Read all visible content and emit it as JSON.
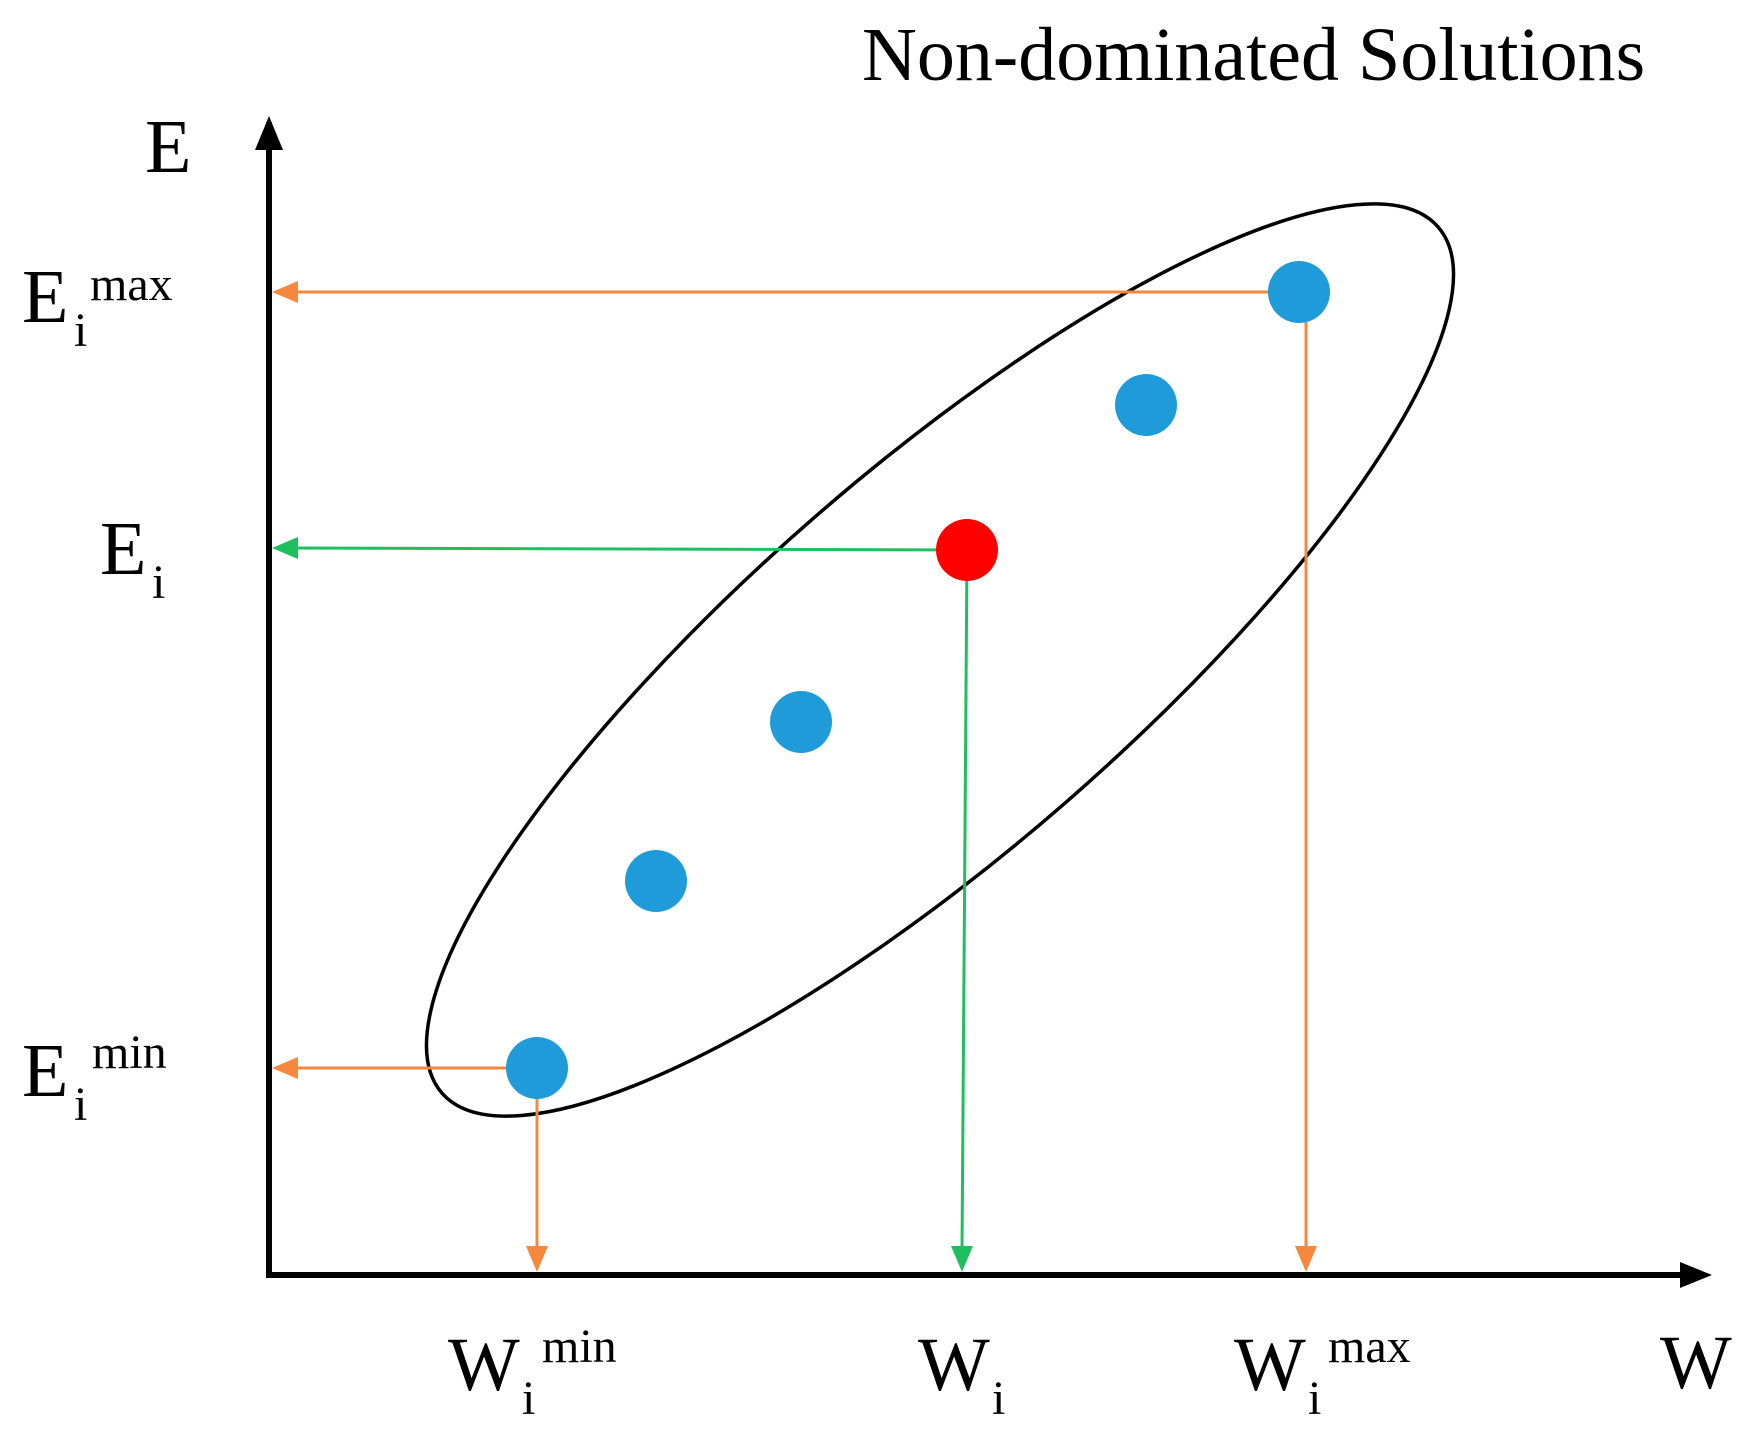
{
  "title": "Non-dominated Solutions",
  "axes": {
    "y_label": "E",
    "x_label": "W"
  },
  "y_ticks": {
    "e_max": {
      "base": "E",
      "sub": "i",
      "sup": "max"
    },
    "e_i": {
      "base": "E",
      "sub": "i",
      "sup": ""
    },
    "e_min": {
      "base": "E",
      "sub": "i",
      "sup": "min"
    }
  },
  "x_ticks": {
    "w_min": {
      "base": "W",
      "sub": "i",
      "sup": "min"
    },
    "w_i": {
      "base": "W",
      "sub": "i",
      "sup": ""
    },
    "w_max": {
      "base": "W",
      "sub": "i",
      "sup": "max"
    }
  },
  "colors": {
    "axis": "#000000",
    "ellipse": "#000000",
    "solution_point": "#1f9bd9",
    "selected_point": "#ff0000",
    "extreme_projection": "#f5883c",
    "selected_projection": "#1fbf5f"
  },
  "points": {
    "count_non_dominated": 6,
    "selected_index": 3
  }
}
